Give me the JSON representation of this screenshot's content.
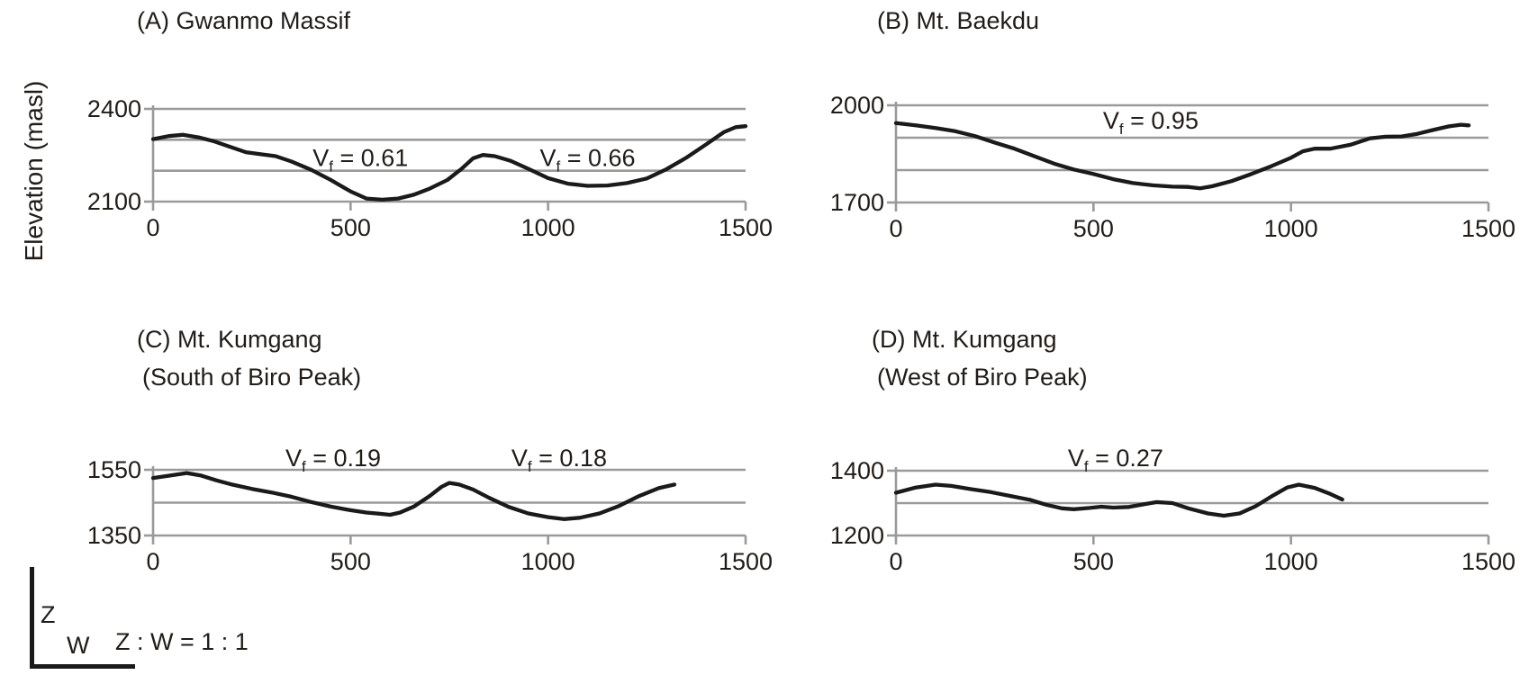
{
  "figure": {
    "y_axis_label": "Elevation (masl)",
    "footer": {
      "z_label": "Z",
      "w_label": "W",
      "ratio_text": "Z : W = 1 : 1"
    },
    "colors": {
      "curve": "#1a1a1a",
      "grid": "#9a9a9a",
      "text": "#211c18",
      "background": "#ffffff"
    }
  },
  "chart_data": [
    {
      "id": "A",
      "type": "line",
      "title": "(A) Gwanmo Massif",
      "subtitle": "",
      "ylabel": "Elevation (masl)",
      "xlabel": "",
      "xlim": [
        0,
        1500
      ],
      "ylim": [
        2100,
        2400
      ],
      "x_ticks": [
        0,
        500,
        1000,
        1500
      ],
      "y_tick_labels": [
        2400,
        2100
      ],
      "gridlines": [
        2400,
        2300,
        2200,
        2100
      ],
      "annotations": [
        {
          "base": "V",
          "sub": "f",
          "rest": " = 0.61",
          "x": 525,
          "elev": 2215
        },
        {
          "base": "V",
          "sub": "f",
          "rest": " = 0.66",
          "x": 1100,
          "elev": 2215
        }
      ],
      "profile": [
        [
          0,
          2302
        ],
        [
          40,
          2312
        ],
        [
          75,
          2316
        ],
        [
          115,
          2308
        ],
        [
          155,
          2295
        ],
        [
          200,
          2275
        ],
        [
          235,
          2260
        ],
        [
          275,
          2253
        ],
        [
          310,
          2247
        ],
        [
          350,
          2230
        ],
        [
          400,
          2203
        ],
        [
          450,
          2170
        ],
        [
          500,
          2133
        ],
        [
          540,
          2110
        ],
        [
          580,
          2106
        ],
        [
          620,
          2110
        ],
        [
          660,
          2122
        ],
        [
          700,
          2142
        ],
        [
          745,
          2170
        ],
        [
          780,
          2205
        ],
        [
          810,
          2240
        ],
        [
          835,
          2251
        ],
        [
          865,
          2247
        ],
        [
          905,
          2232
        ],
        [
          950,
          2206
        ],
        [
          1000,
          2176
        ],
        [
          1050,
          2158
        ],
        [
          1100,
          2151
        ],
        [
          1150,
          2152
        ],
        [
          1200,
          2160
        ],
        [
          1250,
          2175
        ],
        [
          1300,
          2205
        ],
        [
          1350,
          2242
        ],
        [
          1400,
          2285
        ],
        [
          1445,
          2325
        ],
        [
          1475,
          2341
        ],
        [
          1500,
          2344
        ]
      ]
    },
    {
      "id": "B",
      "type": "line",
      "title": "(B) Mt. Baekdu",
      "subtitle": "",
      "ylabel": "",
      "xlabel": "",
      "xlim": [
        0,
        1500
      ],
      "ylim": [
        1700,
        2000
      ],
      "x_ticks": [
        0,
        500,
        1000,
        1500
      ],
      "y_tick_labels": [
        2000,
        1700
      ],
      "gridlines": [
        2000,
        1900,
        1800,
        1700
      ],
      "annotations": [
        {
          "base": "V",
          "sub": "f",
          "rest": " = 0.95",
          "x": 645,
          "elev": 1928
        }
      ],
      "profile": [
        [
          0,
          1945
        ],
        [
          50,
          1938
        ],
        [
          100,
          1930
        ],
        [
          150,
          1920
        ],
        [
          200,
          1905
        ],
        [
          250,
          1885
        ],
        [
          300,
          1866
        ],
        [
          350,
          1843
        ],
        [
          400,
          1820
        ],
        [
          450,
          1802
        ],
        [
          500,
          1788
        ],
        [
          550,
          1772
        ],
        [
          600,
          1760
        ],
        [
          650,
          1753
        ],
        [
          700,
          1749
        ],
        [
          740,
          1748
        ],
        [
          770,
          1744
        ],
        [
          800,
          1750
        ],
        [
          850,
          1766
        ],
        [
          900,
          1788
        ],
        [
          950,
          1812
        ],
        [
          1000,
          1838
        ],
        [
          1030,
          1858
        ],
        [
          1060,
          1866
        ],
        [
          1100,
          1866
        ],
        [
          1150,
          1878
        ],
        [
          1200,
          1898
        ],
        [
          1240,
          1903
        ],
        [
          1280,
          1904
        ],
        [
          1320,
          1912
        ],
        [
          1360,
          1924
        ],
        [
          1400,
          1935
        ],
        [
          1430,
          1940
        ],
        [
          1450,
          1938
        ]
      ]
    },
    {
      "id": "C",
      "type": "line",
      "title": "(C) Mt. Kumgang",
      "subtitle": "(South of Biro Peak)",
      "ylabel": "",
      "xlabel": "",
      "xlim": [
        0,
        1500
      ],
      "ylim": [
        1350,
        1550
      ],
      "x_ticks": [
        0,
        500,
        1000,
        1500
      ],
      "y_tick_labels": [
        1550,
        1350
      ],
      "gridlines": [
        1550,
        1450,
        1350
      ],
      "annotations": [
        {
          "base": "V",
          "sub": "f",
          "rest": " = 0.19",
          "x": 456,
          "elev": 1561
        },
        {
          "base": "V",
          "sub": "f",
          "rest": " = 0.18",
          "x": 1028,
          "elev": 1561
        }
      ],
      "profile": [
        [
          0,
          1525
        ],
        [
          45,
          1533
        ],
        [
          85,
          1540
        ],
        [
          120,
          1533
        ],
        [
          160,
          1518
        ],
        [
          200,
          1505
        ],
        [
          250,
          1492
        ],
        [
          300,
          1481
        ],
        [
          350,
          1468
        ],
        [
          400,
          1452
        ],
        [
          450,
          1438
        ],
        [
          500,
          1427
        ],
        [
          540,
          1420
        ],
        [
          575,
          1416
        ],
        [
          600,
          1413
        ],
        [
          625,
          1420
        ],
        [
          660,
          1438
        ],
        [
          700,
          1470
        ],
        [
          730,
          1498
        ],
        [
          750,
          1510
        ],
        [
          775,
          1505
        ],
        [
          810,
          1490
        ],
        [
          850,
          1465
        ],
        [
          900,
          1437
        ],
        [
          950,
          1417
        ],
        [
          1000,
          1406
        ],
        [
          1040,
          1400
        ],
        [
          1080,
          1404
        ],
        [
          1130,
          1417
        ],
        [
          1180,
          1440
        ],
        [
          1230,
          1470
        ],
        [
          1280,
          1494
        ],
        [
          1320,
          1505
        ]
      ]
    },
    {
      "id": "D",
      "type": "line",
      "title": "(D) Mt. Kumgang",
      "subtitle": "(West of Biro Peak)",
      "ylabel": "",
      "xlabel": "",
      "xlim": [
        0,
        1500
      ],
      "ylim": [
        1200,
        1400
      ],
      "x_ticks": [
        0,
        500,
        1000,
        1500
      ],
      "y_tick_labels": [
        1400,
        1200
      ],
      "gridlines": [
        1400,
        1300,
        1200
      ],
      "annotations": [
        {
          "base": "V",
          "sub": "f",
          "rest": " = 0.27",
          "x": 556,
          "elev": 1414
        }
      ],
      "profile": [
        [
          0,
          1332
        ],
        [
          50,
          1348
        ],
        [
          100,
          1357
        ],
        [
          140,
          1353
        ],
        [
          190,
          1343
        ],
        [
          240,
          1334
        ],
        [
          290,
          1322
        ],
        [
          340,
          1310
        ],
        [
          380,
          1295
        ],
        [
          420,
          1284
        ],
        [
          450,
          1281
        ],
        [
          490,
          1285
        ],
        [
          520,
          1289
        ],
        [
          550,
          1286
        ],
        [
          590,
          1288
        ],
        [
          630,
          1297
        ],
        [
          660,
          1303
        ],
        [
          700,
          1300
        ],
        [
          740,
          1284
        ],
        [
          790,
          1268
        ],
        [
          830,
          1261
        ],
        [
          870,
          1268
        ],
        [
          910,
          1290
        ],
        [
          950,
          1320
        ],
        [
          990,
          1348
        ],
        [
          1020,
          1357
        ],
        [
          1060,
          1347
        ],
        [
          1100,
          1328
        ],
        [
          1130,
          1311
        ]
      ]
    }
  ]
}
